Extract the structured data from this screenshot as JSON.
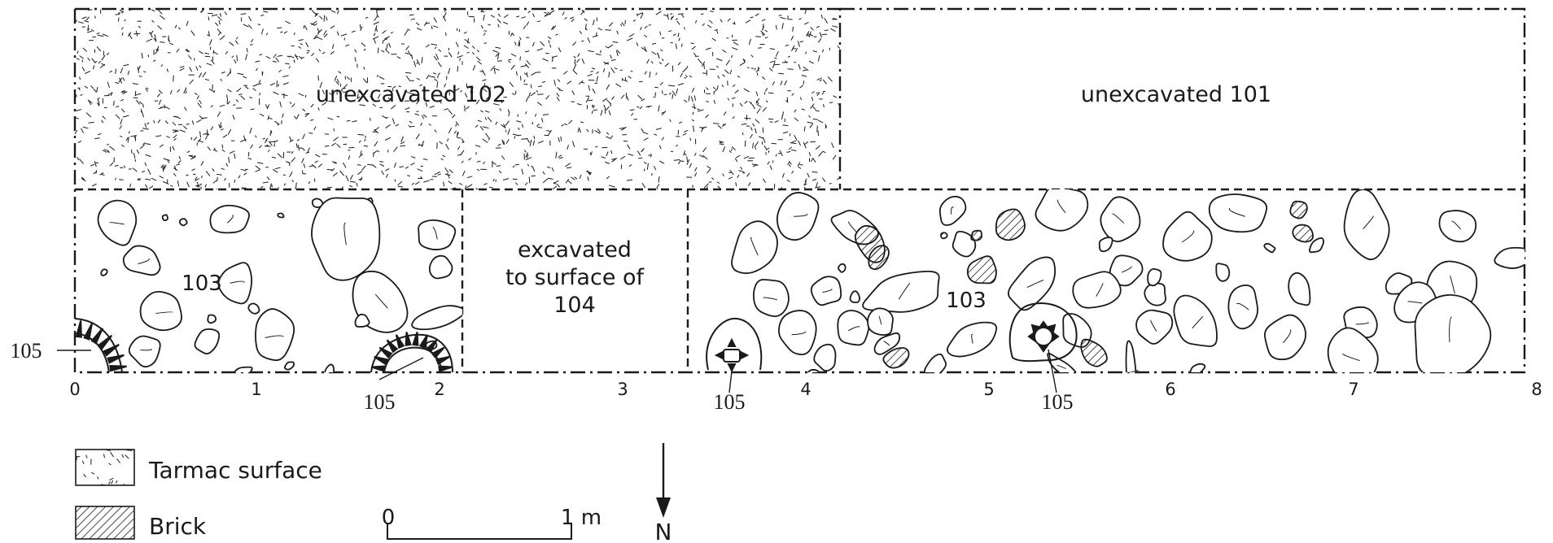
{
  "colors": {
    "ink": "#1a1a1a",
    "paper": "#ffffff"
  },
  "areas": {
    "unexcavated_102": "unexcavated 102",
    "unexcavated_101": "unexcavated 101",
    "excavated_line1": "excavated",
    "excavated_line2": "to surface of",
    "excavated_line3": "104",
    "context_103_left": "103",
    "context_103_right": "103"
  },
  "feature_labels": {
    "f105_a": "105",
    "f105_b": "105",
    "f105_c": "105",
    "f105_d": "105"
  },
  "ticks": [
    "0",
    "1",
    "2",
    "3",
    "4",
    "5",
    "6",
    "7",
    "8"
  ],
  "legend": {
    "tarmac": "Tarmac surface",
    "brick": "Brick"
  },
  "scale_bar": {
    "start": "0",
    "end": "1 m"
  },
  "north_label": "N"
}
